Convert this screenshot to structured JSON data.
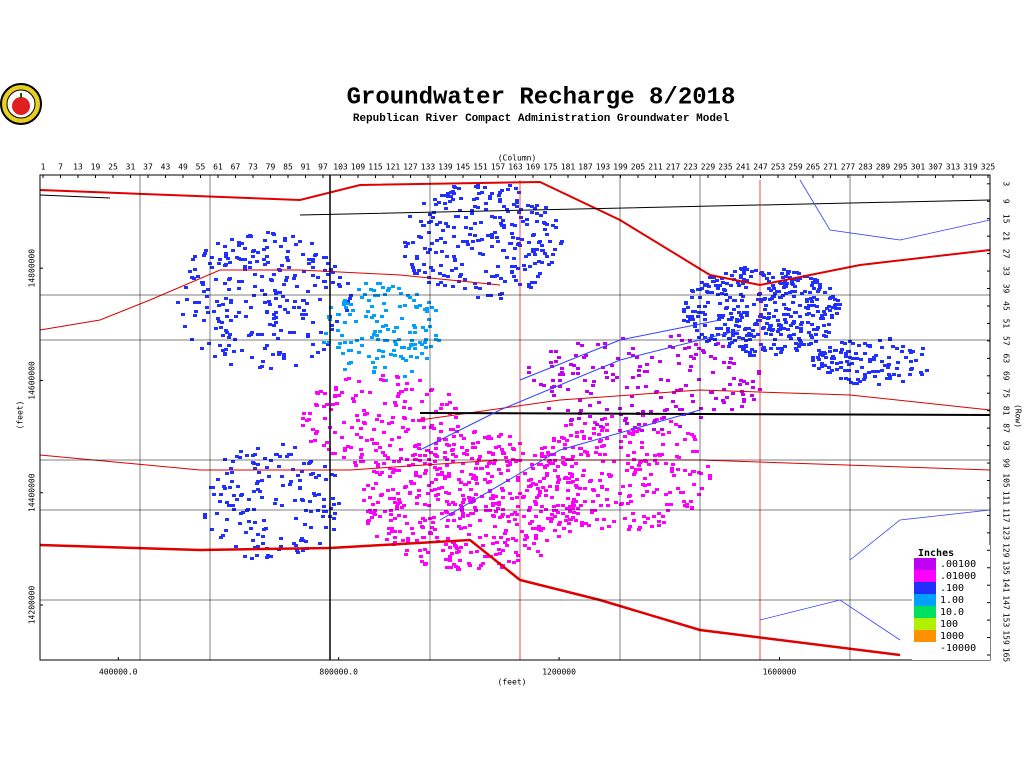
{
  "header": {
    "title": "Groundwater Recharge 8/2018",
    "subtitle": "Republican River Compact Administration Groundwater Model"
  },
  "map": {
    "column_label": "(Column)",
    "row_label": "(Row)",
    "x_label": "(feet)",
    "y_label": "(feet)",
    "column_lim": [
      1,
      325
    ],
    "columns": [
      1,
      7,
      13,
      19,
      25,
      31,
      37,
      43,
      49,
      55,
      61,
      67,
      73,
      79,
      85,
      91,
      97,
      103,
      109,
      115,
      121,
      127,
      133,
      139,
      145,
      151,
      157,
      163,
      169,
      175,
      181,
      187,
      193,
      199,
      205,
      211,
      217,
      223,
      229,
      235,
      241,
      247,
      253,
      259,
      265,
      271,
      277,
      283,
      289,
      295,
      301,
      307,
      313,
      319,
      325
    ],
    "row_lim": [
      1,
      165
    ],
    "rows": [
      3,
      9,
      15,
      21,
      27,
      33,
      39,
      45,
      51,
      57,
      63,
      69,
      75,
      81,
      87,
      93,
      99,
      105,
      111,
      117,
      123,
      129,
      135,
      141,
      147,
      153,
      159,
      165
    ],
    "xlim": [
      258000,
      1982000
    ],
    "xticks": [
      {
        "value": 400000,
        "label": "400000.0"
      },
      {
        "value": 800000,
        "label": "800000.0"
      },
      1200000,
      1600000
    ],
    "ylim": [
      14102000,
      14966000
    ],
    "yticks": [
      14800000,
      14600000,
      14400000,
      14200000
    ]
  },
  "legend": {
    "title": "Inches",
    "entries": [
      {
        "label": ".00100",
        "color": "#c000f0"
      },
      {
        "label": ".01000",
        "color": "#ff00ff"
      },
      {
        "label": ".100",
        "color": "#2030ff"
      },
      {
        "label": "1.00",
        "color": "#00a0ff"
      },
      {
        "label": "10.0",
        "color": "#00e060"
      },
      {
        "label": "100",
        "color": "#b0f000"
      },
      {
        "label": "1000",
        "color": "#ff9000"
      },
      {
        "label": "-10000",
        "color": null
      }
    ]
  }
}
